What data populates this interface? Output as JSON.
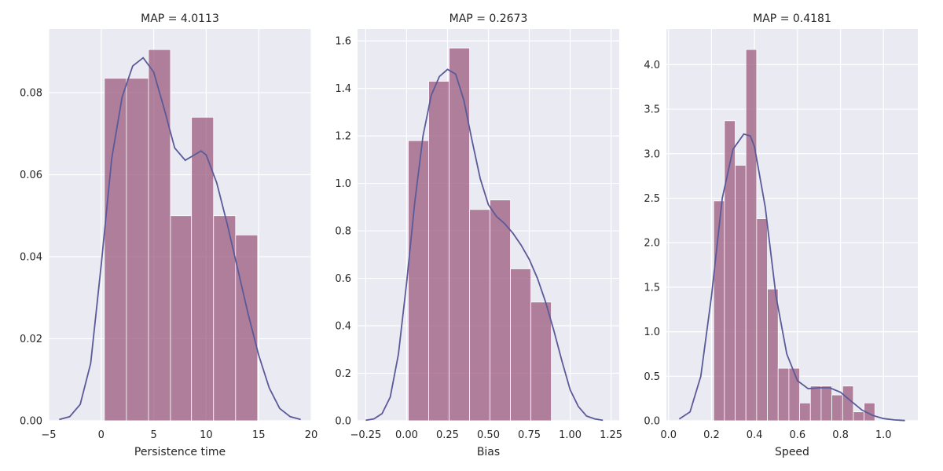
{
  "chart_data": [
    {
      "type": "bar",
      "title": "MAP = 4.0113",
      "xlabel": "Persistence time",
      "ylabel": "",
      "xlim": [
        -5,
        20
      ],
      "ylim": [
        0,
        0.0955
      ],
      "xticks": [
        -5,
        0,
        5,
        10,
        15,
        20
      ],
      "xtick_labels": [
        "−5",
        "0",
        "5",
        "10",
        "15",
        "20"
      ],
      "yticks": [
        0,
        0.02,
        0.04,
        0.06,
        0.08
      ],
      "ytick_labels": [
        "0.00",
        "0.02",
        "0.04",
        "0.06",
        "0.08"
      ],
      "grid": true,
      "histogram": {
        "bin_edges": [
          0.3,
          2.4,
          4.5,
          6.6,
          8.6,
          10.7,
          12.8,
          14.9
        ],
        "values": [
          0.0835,
          0.0835,
          0.0905,
          0.05,
          0.074,
          0.05,
          0.0453
        ]
      },
      "kde": {
        "x": [
          -4.0,
          -3.0,
          -2.0,
          -1.0,
          0.0,
          1.0,
          2.0,
          3.0,
          4.0,
          5.0,
          6.0,
          7.0,
          8.0,
          9.0,
          9.5,
          10.0,
          11.0,
          12.0,
          13.0,
          14.0,
          15.0,
          16.0,
          17.0,
          18.0,
          19.0
        ],
        "y": [
          0.0003,
          0.001,
          0.004,
          0.014,
          0.038,
          0.064,
          0.079,
          0.0865,
          0.0885,
          0.085,
          0.076,
          0.0665,
          0.0635,
          0.065,
          0.0658,
          0.0648,
          0.058,
          0.048,
          0.037,
          0.026,
          0.016,
          0.008,
          0.003,
          0.001,
          0.0003
        ]
      }
    },
    {
      "type": "bar",
      "title": "MAP = 0.2673",
      "xlabel": "Bias",
      "ylabel": "",
      "xlim": [
        -0.3,
        1.3
      ],
      "ylim": [
        0,
        1.65
      ],
      "xticks": [
        -0.25,
        0.0,
        0.25,
        0.5,
        0.75,
        1.0,
        1.25
      ],
      "xtick_labels": [
        "−0.25",
        "0.00",
        "0.25",
        "0.50",
        "0.75",
        "1.00",
        "1.25"
      ],
      "yticks": [
        0,
        0.2,
        0.4,
        0.6,
        0.8,
        1.0,
        1.2,
        1.4,
        1.6
      ],
      "ytick_labels": [
        "0.0",
        "0.2",
        "0.4",
        "0.6",
        "0.8",
        "1.0",
        "1.2",
        "1.4",
        "1.6"
      ],
      "grid": true,
      "histogram": {
        "bin_edges": [
          0.01,
          0.135,
          0.26,
          0.385,
          0.51,
          0.635,
          0.76,
          0.885
        ],
        "values": [
          1.18,
          1.43,
          1.57,
          0.89,
          0.93,
          0.64,
          0.5
        ]
      },
      "kde": {
        "x": [
          -0.25,
          -0.2,
          -0.15,
          -0.1,
          -0.05,
          0.0,
          0.05,
          0.1,
          0.15,
          0.2,
          0.25,
          0.3,
          0.35,
          0.4,
          0.45,
          0.5,
          0.55,
          0.6,
          0.65,
          0.7,
          0.75,
          0.8,
          0.85,
          0.9,
          0.95,
          1.0,
          1.05,
          1.1,
          1.15,
          1.2
        ],
        "y": [
          0.002,
          0.008,
          0.03,
          0.1,
          0.28,
          0.58,
          0.92,
          1.2,
          1.37,
          1.45,
          1.48,
          1.46,
          1.35,
          1.18,
          1.02,
          0.91,
          0.86,
          0.83,
          0.79,
          0.74,
          0.68,
          0.6,
          0.5,
          0.38,
          0.25,
          0.13,
          0.06,
          0.02,
          0.008,
          0.002
        ]
      }
    },
    {
      "type": "bar",
      "title": "MAP = 0.4181",
      "xlabel": "Speed",
      "ylabel": "",
      "xlim": [
        -0.01,
        1.16
      ],
      "ylim": [
        0,
        4.4
      ],
      "xticks": [
        0.0,
        0.2,
        0.4,
        0.6,
        0.8,
        1.0
      ],
      "xtick_labels": [
        "0.0",
        "0.2",
        "0.4",
        "0.6",
        "0.8",
        "1.0"
      ],
      "yticks": [
        0,
        0.5,
        1.0,
        1.5,
        2.0,
        2.5,
        3.0,
        3.5,
        4.0
      ],
      "ytick_labels": [
        "0.0",
        "0.5",
        "1.0",
        "1.5",
        "2.0",
        "2.5",
        "3.0",
        "3.5",
        "4.0"
      ],
      "grid": true,
      "histogram": {
        "bin_edges": [
          0.21,
          0.26,
          0.31,
          0.36,
          0.41,
          0.46,
          0.51,
          0.56,
          0.61,
          0.66,
          0.71,
          0.76,
          0.81,
          0.86,
          0.91,
          0.96
        ],
        "values": [
          2.47,
          3.37,
          2.87,
          4.17,
          2.27,
          1.48,
          0.59,
          0.59,
          0.2,
          0.39,
          0.39,
          0.29,
          0.39,
          0.1,
          0.2
        ]
      },
      "kde": {
        "x": [
          0.05,
          0.1,
          0.15,
          0.2,
          0.25,
          0.3,
          0.35,
          0.38,
          0.4,
          0.45,
          0.5,
          0.55,
          0.6,
          0.65,
          0.7,
          0.75,
          0.8,
          0.85,
          0.9,
          0.95,
          1.0,
          1.05,
          1.1
        ],
        "y": [
          0.02,
          0.1,
          0.5,
          1.4,
          2.5,
          3.05,
          3.22,
          3.2,
          3.08,
          2.4,
          1.4,
          0.75,
          0.45,
          0.36,
          0.37,
          0.37,
          0.32,
          0.22,
          0.12,
          0.06,
          0.025,
          0.01,
          0.003
        ]
      }
    }
  ]
}
